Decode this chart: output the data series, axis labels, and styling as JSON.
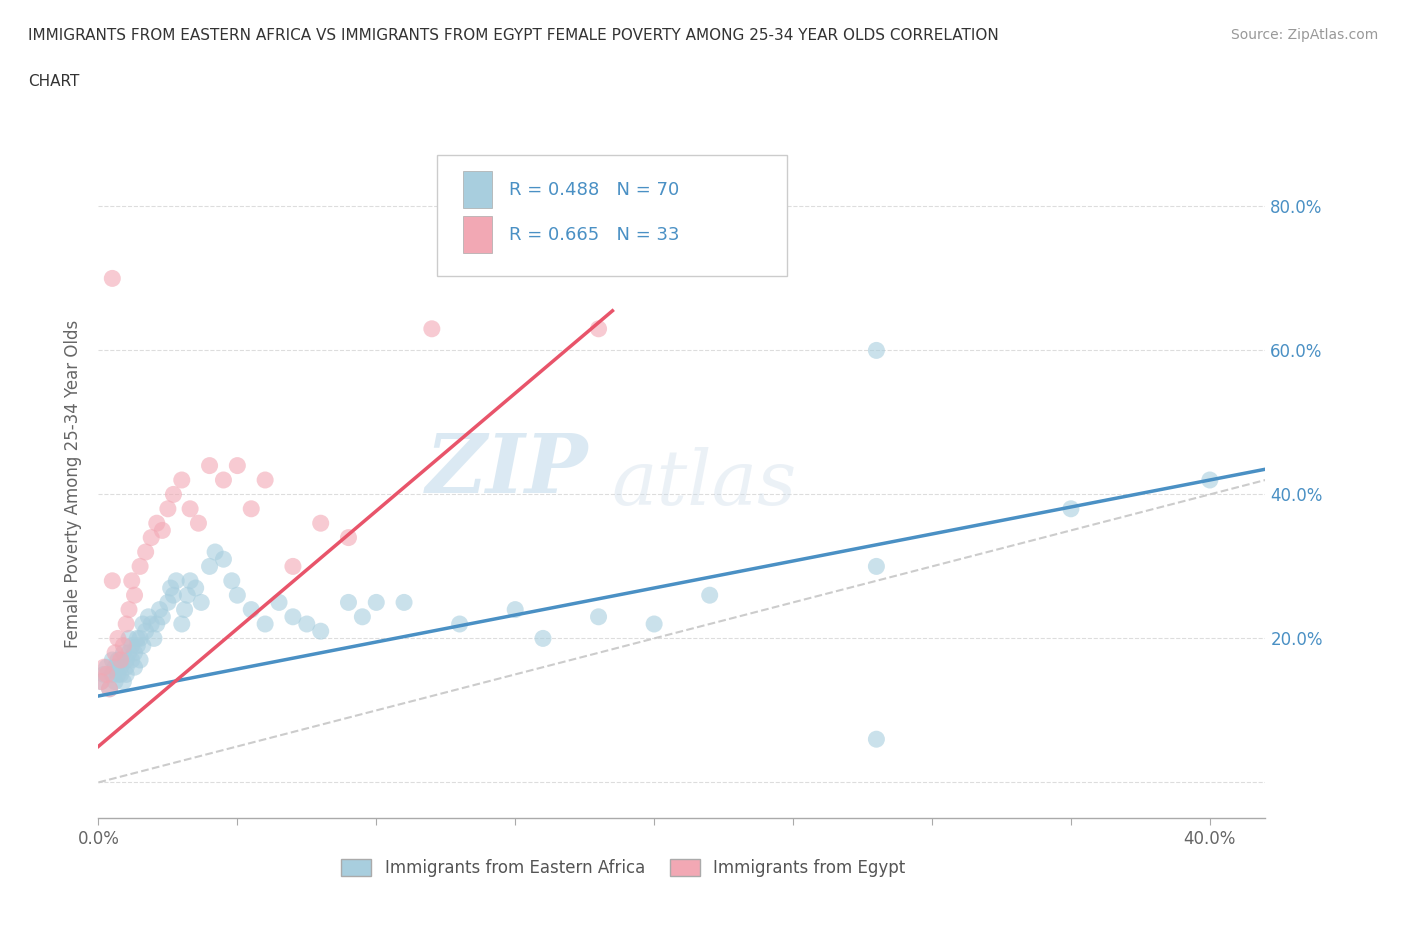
{
  "title_line1": "IMMIGRANTS FROM EASTERN AFRICA VS IMMIGRANTS FROM EGYPT FEMALE POVERTY AMONG 25-34 YEAR OLDS CORRELATION",
  "title_line2": "CHART",
  "source": "Source: ZipAtlas.com",
  "ylabel": "Female Poverty Among 25-34 Year Olds",
  "xlim": [
    0.0,
    0.42
  ],
  "ylim": [
    -0.05,
    0.88
  ],
  "color_blue": "#A8CEDE",
  "color_pink": "#F2A8B4",
  "color_blue_line": "#4A90C4",
  "color_pink_line": "#E8546A",
  "color_diag": "#CCCCCC",
  "watermark_zip": "ZIP",
  "watermark_atlas": "atlas",
  "blue_line_x0": 0.0,
  "blue_line_y0": 0.12,
  "blue_line_x1": 0.42,
  "blue_line_y1": 0.435,
  "pink_line_x0": 0.0,
  "pink_line_y0": 0.05,
  "pink_line_x1": 0.185,
  "pink_line_y1": 0.655,
  "eastern_africa_x": [
    0.001,
    0.002,
    0.003,
    0.004,
    0.005,
    0.005,
    0.006,
    0.006,
    0.007,
    0.007,
    0.008,
    0.008,
    0.009,
    0.009,
    0.01,
    0.01,
    0.01,
    0.011,
    0.011,
    0.012,
    0.012,
    0.013,
    0.013,
    0.014,
    0.014,
    0.015,
    0.015,
    0.016,
    0.016,
    0.017,
    0.018,
    0.019,
    0.02,
    0.021,
    0.022,
    0.023,
    0.025,
    0.026,
    0.027,
    0.028,
    0.03,
    0.031,
    0.032,
    0.033,
    0.035,
    0.037,
    0.04,
    0.042,
    0.045,
    0.048,
    0.05,
    0.055,
    0.06,
    0.065,
    0.07,
    0.075,
    0.08,
    0.09,
    0.095,
    0.1,
    0.11,
    0.13,
    0.15,
    0.16,
    0.18,
    0.2,
    0.22,
    0.28,
    0.35,
    0.4
  ],
  "eastern_africa_y": [
    0.14,
    0.15,
    0.16,
    0.13,
    0.15,
    0.17,
    0.14,
    0.16,
    0.15,
    0.17,
    0.16,
    0.15,
    0.14,
    0.18,
    0.17,
    0.16,
    0.15,
    0.18,
    0.2,
    0.19,
    0.17,
    0.16,
    0.18,
    0.2,
    0.19,
    0.17,
    0.2,
    0.22,
    0.19,
    0.21,
    0.23,
    0.22,
    0.2,
    0.22,
    0.24,
    0.23,
    0.25,
    0.27,
    0.26,
    0.28,
    0.22,
    0.24,
    0.26,
    0.28,
    0.27,
    0.25,
    0.3,
    0.32,
    0.31,
    0.28,
    0.26,
    0.24,
    0.22,
    0.25,
    0.23,
    0.22,
    0.21,
    0.25,
    0.23,
    0.25,
    0.25,
    0.22,
    0.24,
    0.2,
    0.23,
    0.22,
    0.26,
    0.3,
    0.38,
    0.42
  ],
  "eastern_africa_outlier_x": [
    0.28
  ],
  "eastern_africa_outlier_y": [
    0.6
  ],
  "eastern_africa_low_x": [
    0.28
  ],
  "eastern_africa_low_y": [
    0.06
  ],
  "egypt_x": [
    0.001,
    0.002,
    0.003,
    0.004,
    0.005,
    0.006,
    0.007,
    0.008,
    0.009,
    0.01,
    0.011,
    0.012,
    0.013,
    0.015,
    0.017,
    0.019,
    0.021,
    0.023,
    0.025,
    0.027,
    0.03,
    0.033,
    0.036,
    0.04,
    0.045,
    0.05,
    0.055,
    0.06,
    0.07,
    0.08,
    0.09,
    0.12,
    0.18
  ],
  "egypt_y": [
    0.14,
    0.16,
    0.15,
    0.13,
    0.28,
    0.18,
    0.2,
    0.17,
    0.19,
    0.22,
    0.24,
    0.28,
    0.26,
    0.3,
    0.32,
    0.34,
    0.36,
    0.35,
    0.38,
    0.4,
    0.42,
    0.38,
    0.36,
    0.44,
    0.42,
    0.44,
    0.38,
    0.42,
    0.3,
    0.36,
    0.34,
    0.63,
    0.63
  ],
  "egypt_outlier_x": [
    0.005
  ],
  "egypt_outlier_y": [
    0.7
  ]
}
